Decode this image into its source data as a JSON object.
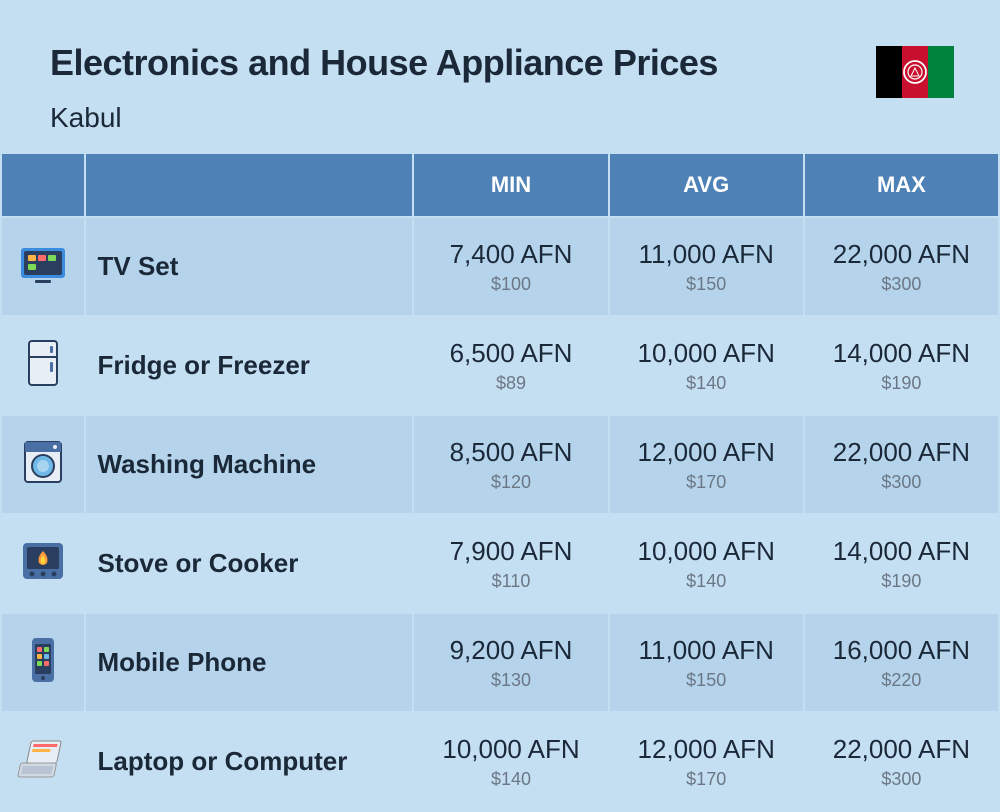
{
  "header": {
    "title": "Electronics and House Appliance Prices",
    "subtitle": "Kabul"
  },
  "flag": {
    "stripe_colors": [
      "#000000",
      "#c8102e",
      "#00843d"
    ],
    "emblem_color": "#ffffff"
  },
  "table": {
    "columns": [
      "",
      "",
      "MIN",
      "AVG",
      "MAX"
    ],
    "col_widths": {
      "icon": 82,
      "name": 330,
      "val": 195
    },
    "header_bg": "#4e81b5",
    "header_fg": "#ffffff",
    "row_bg_a": "#b5d4ec",
    "row_bg_b": "#c5dff2",
    "text_color": "#1a2838",
    "sub_color": "#6b7785",
    "items": [
      {
        "icon": "tv",
        "name": "TV Set",
        "min": {
          "primary": "7,400 AFN",
          "secondary": "$100"
        },
        "avg": {
          "primary": "11,000 AFN",
          "secondary": "$150"
        },
        "max": {
          "primary": "22,000 AFN",
          "secondary": "$300"
        }
      },
      {
        "icon": "fridge",
        "name": "Fridge or Freezer",
        "min": {
          "primary": "6,500 AFN",
          "secondary": "$89"
        },
        "avg": {
          "primary": "10,000 AFN",
          "secondary": "$140"
        },
        "max": {
          "primary": "14,000 AFN",
          "secondary": "$190"
        }
      },
      {
        "icon": "washer",
        "name": "Washing Machine",
        "min": {
          "primary": "8,500 AFN",
          "secondary": "$120"
        },
        "avg": {
          "primary": "12,000 AFN",
          "secondary": "$170"
        },
        "max": {
          "primary": "22,000 AFN",
          "secondary": "$300"
        }
      },
      {
        "icon": "stove",
        "name": "Stove or Cooker",
        "min": {
          "primary": "7,900 AFN",
          "secondary": "$110"
        },
        "avg": {
          "primary": "10,000 AFN",
          "secondary": "$140"
        },
        "max": {
          "primary": "14,000 AFN",
          "secondary": "$190"
        }
      },
      {
        "icon": "phone",
        "name": "Mobile Phone",
        "min": {
          "primary": "9,200 AFN",
          "secondary": "$130"
        },
        "avg": {
          "primary": "11,000 AFN",
          "secondary": "$150"
        },
        "max": {
          "primary": "16,000 AFN",
          "secondary": "$220"
        }
      },
      {
        "icon": "laptop",
        "name": "Laptop or Computer",
        "min": {
          "primary": "10,000 AFN",
          "secondary": "$140"
        },
        "avg": {
          "primary": "12,000 AFN",
          "secondary": "$170"
        },
        "max": {
          "primary": "22,000 AFN",
          "secondary": "$300"
        }
      }
    ]
  },
  "icons": {
    "tv": {
      "body": "#3a8dde",
      "screen": "#2a3f5f",
      "accent1": "#ffb347",
      "accent2": "#ff6b6b",
      "accent3": "#7ed957"
    },
    "fridge": {
      "body": "#e8eef5",
      "outline": "#2a3f5f",
      "handle": "#4a6fa5"
    },
    "washer": {
      "body": "#e8eef5",
      "outline": "#2a3f5f",
      "door": "#6fb8e8",
      "panel": "#4a6fa5"
    },
    "stove": {
      "body": "#4a6fa5",
      "flame_outer": "#ff9a3c",
      "flame_inner": "#ffd93c",
      "knob": "#2a3f5f"
    },
    "phone": {
      "body": "#4a6fa5",
      "screen": "#2a3f5f",
      "app1": "#ff6b6b",
      "app2": "#7ed957",
      "app3": "#ffb347",
      "app4": "#6fb8e8"
    },
    "laptop": {
      "screen": "#e8eef5",
      "body": "#d0d8e2",
      "bar1": "#ff6b6b",
      "bar2": "#ffb347",
      "keys": "#b8c4d4"
    }
  }
}
